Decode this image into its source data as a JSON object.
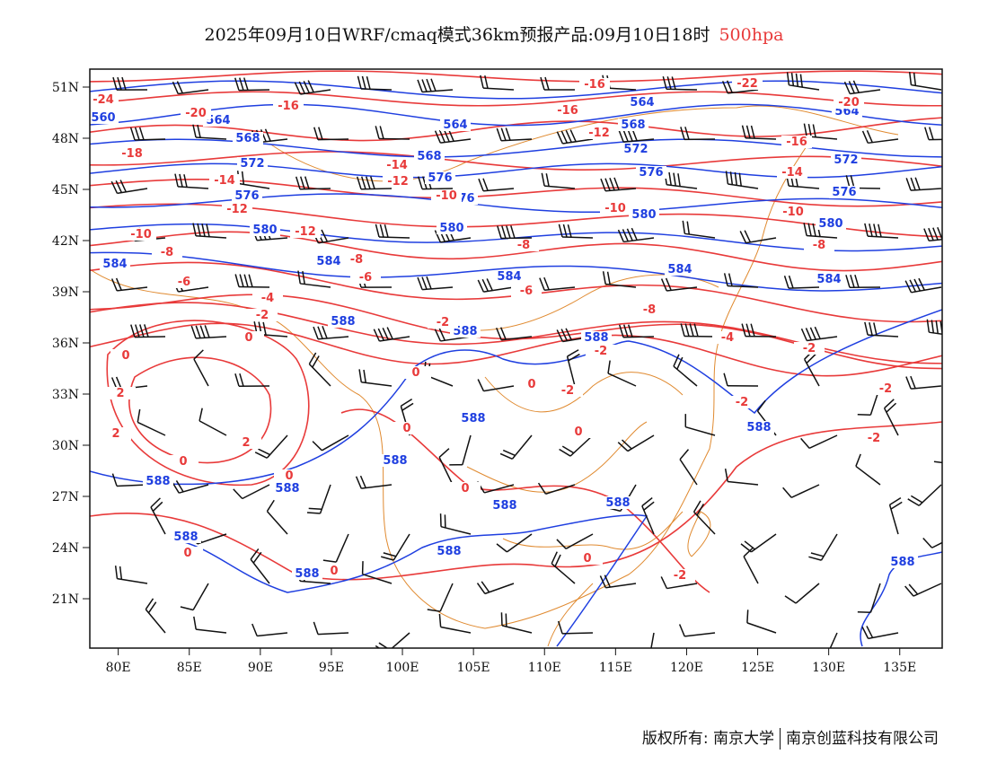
{
  "title": {
    "main": "2025年09月10日WRF/cmaq模式36km预报产品:09月10日18时",
    "level": "500hpa"
  },
  "colors": {
    "temperature": "#e83a3a",
    "height": "#1f3fe0",
    "wind": "#111111",
    "border": "#e08a30",
    "frame": "#111111",
    "level_text": "#e83a3a"
  },
  "map": {
    "lon_range": [
      78,
      138
    ],
    "lat_range": [
      18,
      52
    ],
    "lon_ticks": [
      "80E",
      "85E",
      "90E",
      "95E",
      "100E",
      "105E",
      "110E",
      "115E",
      "120E",
      "125E",
      "130E",
      "135E"
    ],
    "lat_ticks": [
      "51N",
      "48N",
      "45N",
      "42N",
      "39N",
      "36N",
      "33N",
      "30N",
      "27N",
      "24N",
      "21N"
    ],
    "wind_barbs": "black barbs on a ~3° grid, predominantly westerly"
  },
  "contours": {
    "height_labels": [
      "560",
      "564",
      "568",
      "572",
      "576",
      "580",
      "584",
      "588"
    ],
    "temperature_labels": [
      "-24",
      "-22",
      "-20",
      "-18",
      "-16",
      "-14",
      "-12",
      "-10",
      "-8",
      "-6",
      "-4",
      "-2",
      "0",
      "2"
    ]
  },
  "footer": {
    "owner": "版权所有: 南京大学",
    "company": "南京创蓝科技有限公司"
  }
}
